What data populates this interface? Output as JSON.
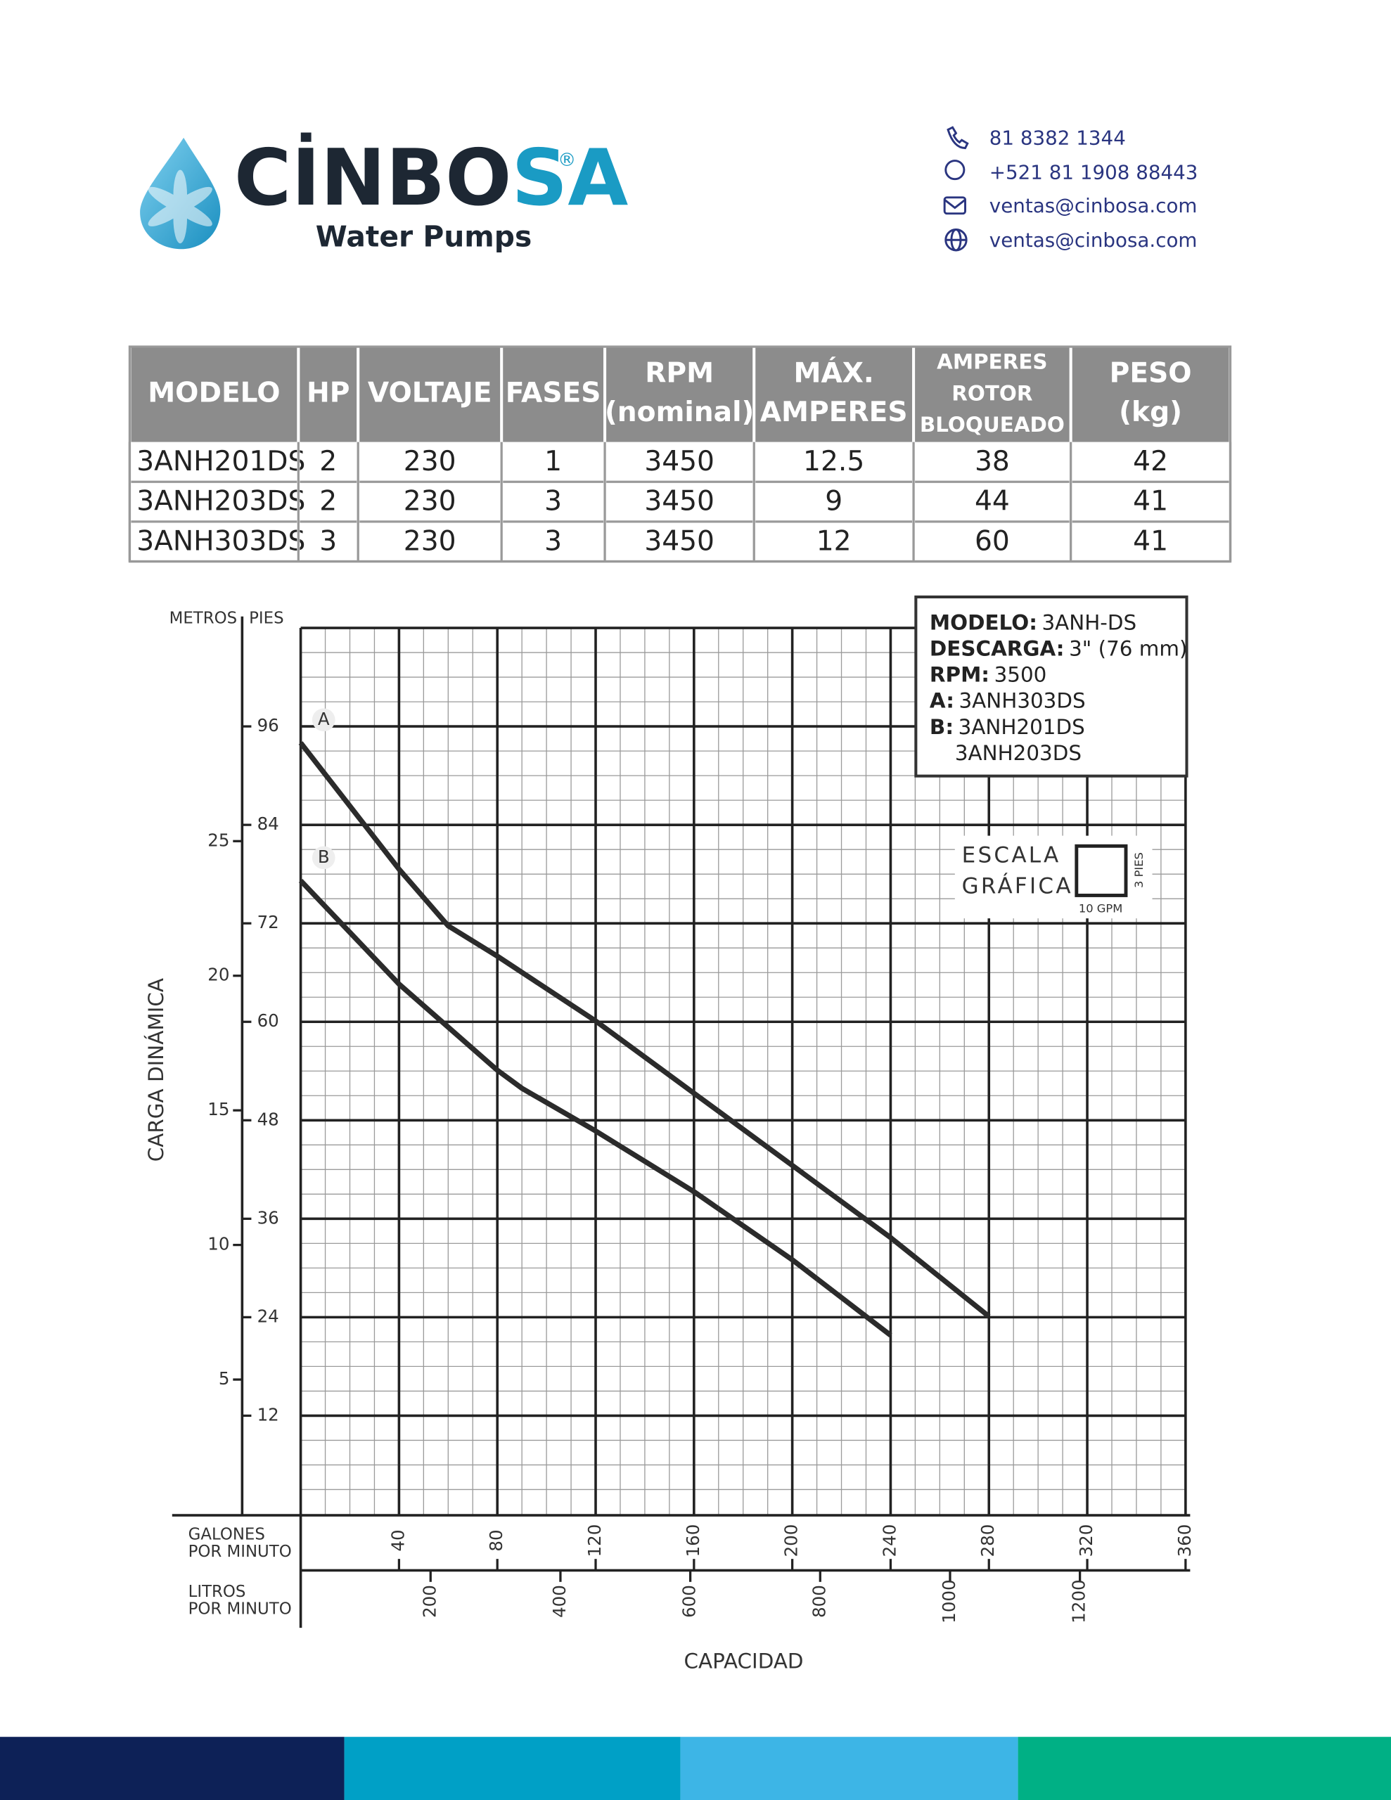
{
  "header": {
    "brand_dark": "CİNBO",
    "brand_accent": "SA",
    "registered": "®",
    "tagline": "Water Pumps",
    "contacts": [
      "81 8382 1344",
      "+521 81 1908 88443",
      "ventas@cinbosa.com",
      "ventas@cinbosa.com"
    ]
  },
  "table": {
    "columns": [
      [
        "MODELO"
      ],
      [
        "HP"
      ],
      [
        "VOLTAJE"
      ],
      [
        "FASES"
      ],
      [
        "RPM",
        "(nominal)"
      ],
      [
        "MÁX.",
        "AMPERES"
      ],
      [
        "AMPERES",
        "ROTOR",
        "BLOQUEADO"
      ],
      [
        "PESO",
        "(kg)"
      ]
    ],
    "rows": [
      [
        "3ANH201DS",
        2,
        230,
        1,
        3450,
        12.5,
        38,
        42
      ],
      [
        "3ANH203DS",
        2,
        230,
        3,
        3450,
        9,
        44,
        41
      ],
      [
        "3ANH303DS",
        3,
        230,
        3,
        3450,
        12,
        60,
        41
      ]
    ]
  },
  "chart_data": {
    "type": "line",
    "x_label": "CAPACIDAD",
    "y_label": "CARGA DINÁMICA",
    "y_unit": "PIES",
    "y2_unit": "METROS",
    "x_unit": [
      "GALONES",
      "POR MINUTO"
    ],
    "x2_unit": [
      "LITROS",
      "POR MINUTO"
    ],
    "xlim": [
      0,
      360
    ],
    "xticks": [
      40,
      80,
      120,
      160,
      200,
      240,
      280,
      320,
      360
    ],
    "x2lim": [
      0,
      1362.7
    ],
    "x2ticks": [
      200,
      400,
      600,
      800,
      1000,
      1200
    ],
    "ylim": [
      0,
      108
    ],
    "yticks": [
      12,
      24,
      36,
      48,
      60,
      72,
      84,
      96
    ],
    "y2lim": [
      0,
      32.92
    ],
    "y2ticks": [
      5,
      10,
      15,
      20,
      25
    ],
    "grid": true,
    "minor_grid": {
      "x": 10,
      "y": 3
    },
    "series": [
      {
        "name": "A",
        "color": "#2b2b2b",
        "x": [
          0,
          40,
          60,
          80,
          120,
          160,
          200,
          240,
          280
        ],
        "values": [
          94,
          78.6,
          71.7,
          68,
          60.1,
          51.3,
          42.5,
          33.7,
          24.1
        ]
      },
      {
        "name": "B",
        "color": "#2b2b2b",
        "x": [
          0,
          40,
          80,
          90,
          120,
          160,
          200,
          220,
          240
        ],
        "values": [
          77.2,
          64.6,
          54.1,
          51.9,
          46.7,
          39.3,
          31,
          26.4,
          21.8
        ]
      }
    ],
    "info": [
      {
        "key": "MODELO:",
        "value": "3ANH-DS"
      },
      {
        "key": "DESCARGA:",
        "value": "3\" (76 mm)"
      },
      {
        "key": "RPM:",
        "value": "3500"
      },
      {
        "key": "A:",
        "value": "3ANH303DS"
      },
      {
        "key": "B:",
        "value": "3ANH201DS"
      },
      {
        "value": "3ANH203DS"
      }
    ],
    "scale": {
      "title": [
        "ESCALA",
        "GRÁFICA"
      ],
      "x": "10 GPM",
      "y": "3 PIES"
    }
  }
}
